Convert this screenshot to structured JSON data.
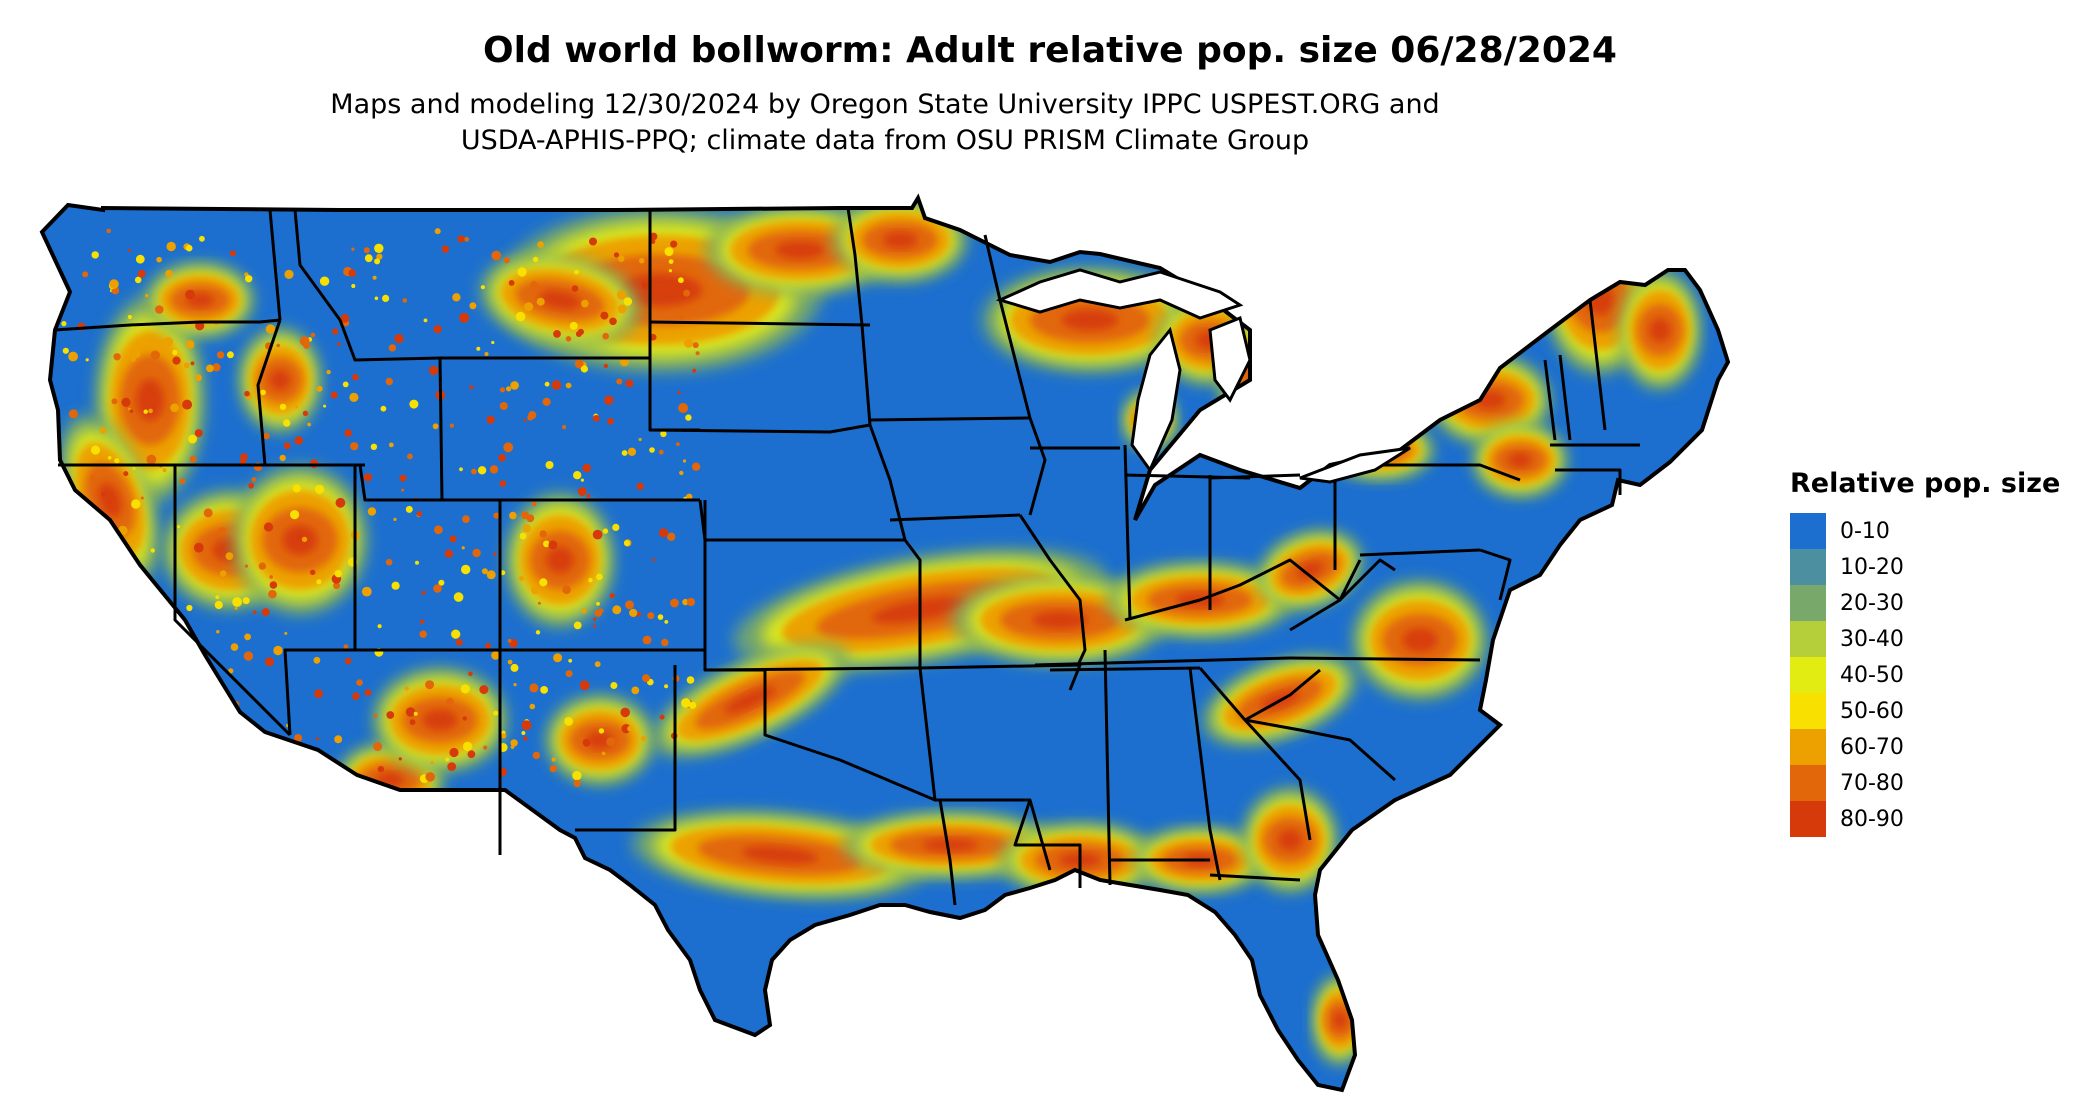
{
  "title": "Old world bollworm: Adult relative pop. size 06/28/2024",
  "subtitle_line1": "Maps and modeling 12/30/2024 by Oregon State University IPPC USPEST.ORG and",
  "subtitle_line2": "USDA-APHIS-PPQ; climate data from OSU PRISM Climate Group",
  "legend": {
    "title": "Relative pop. size",
    "items": [
      {
        "label": "0-10",
        "color": "#1c6fcf"
      },
      {
        "label": "10-20",
        "color": "#4b8fa0"
      },
      {
        "label": "20-30",
        "color": "#78a96b"
      },
      {
        "label": "30-40",
        "color": "#b5cf3a"
      },
      {
        "label": "40-50",
        "color": "#e3ec12"
      },
      {
        "label": "50-60",
        "color": "#f8e000"
      },
      {
        "label": "60-70",
        "color": "#eca100"
      },
      {
        "label": "70-80",
        "color": "#e2670a"
      },
      {
        "label": "80-90",
        "color": "#d63a0b"
      }
    ]
  },
  "map": {
    "region": "contiguous-united-states",
    "base_color": "#1c6fcf",
    "border_color": "#000000"
  }
}
